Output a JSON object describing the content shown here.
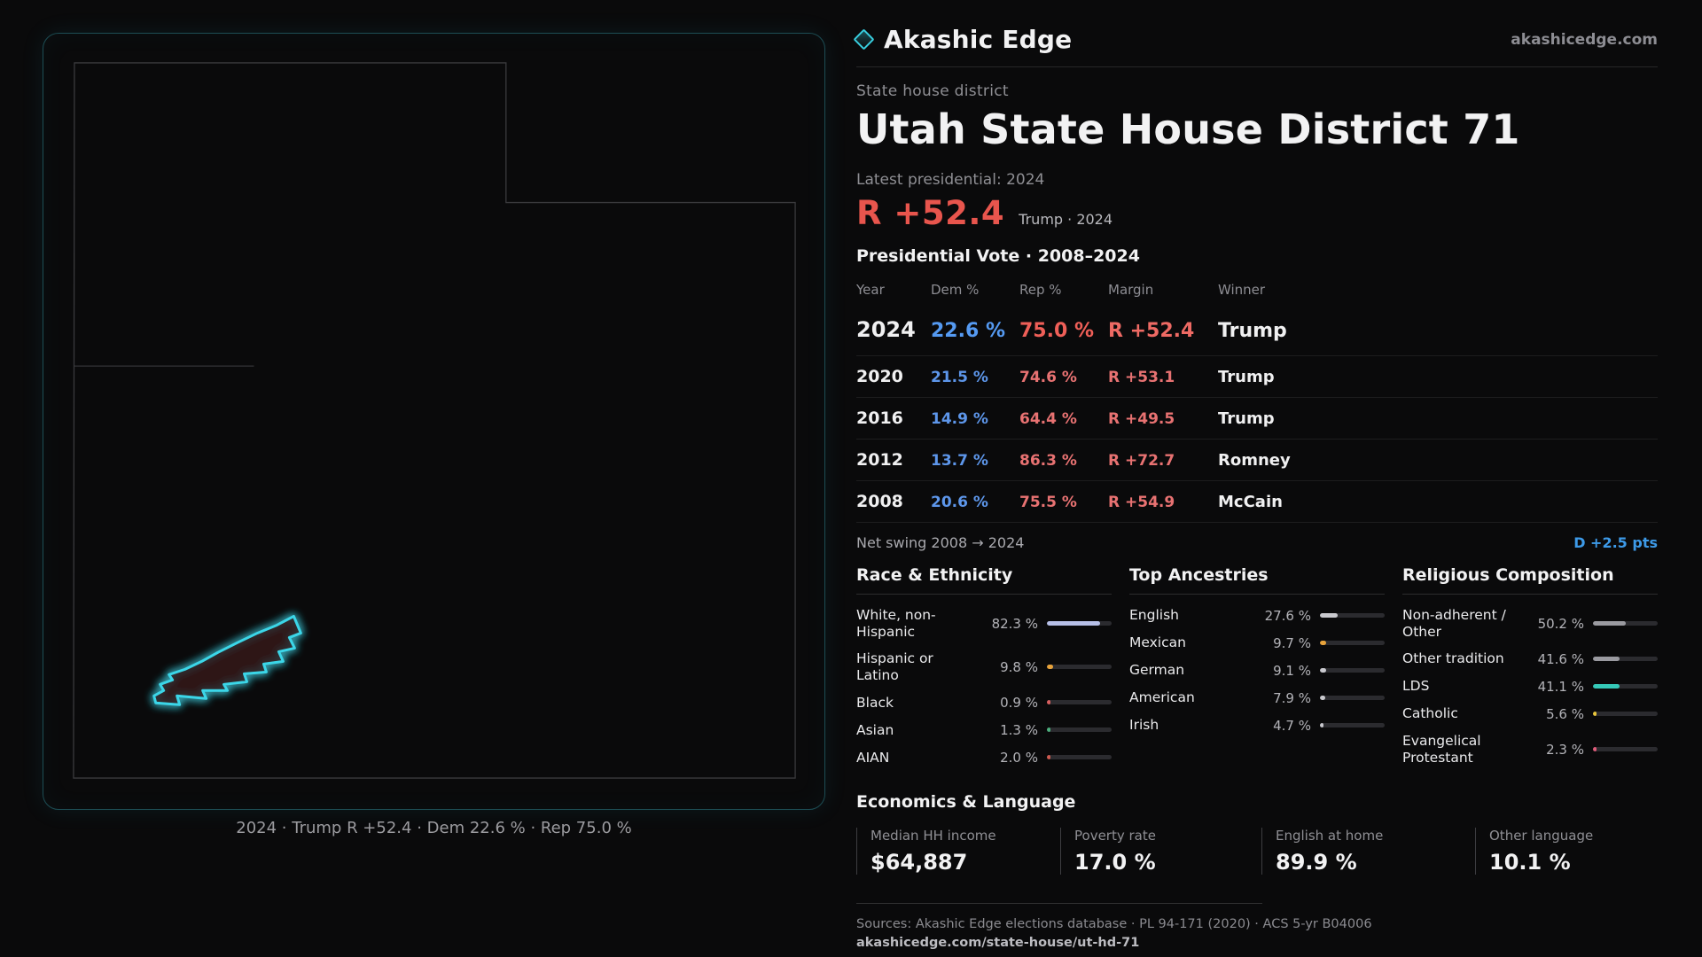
{
  "brand": {
    "name": "Akashic Edge",
    "domain": "akashicedge.com"
  },
  "colors": {
    "accent_cyan": "#38cfe0",
    "rep_red": "#e8554d",
    "dem_blue": "#5d96ea",
    "swing_blue": "#3d9ae8",
    "muted": "#8f8f94"
  },
  "header": {
    "kicker": "State house district",
    "title": "Utah State House District 71"
  },
  "latest": {
    "label": "Latest presidential: 2024",
    "margin": "R +52.4",
    "note": "Trump · 2024"
  },
  "table": {
    "title": "Presidential Vote · 2008–2024",
    "columns": {
      "year": "Year",
      "dem": "Dem %",
      "rep": "Rep %",
      "margin": "Margin",
      "winner": "Winner"
    },
    "rows": [
      {
        "year": "2024",
        "dem": "22.6 %",
        "rep": "75.0 %",
        "margin": "R +52.4",
        "winner": "Trump"
      },
      {
        "year": "2020",
        "dem": "21.5 %",
        "rep": "74.6 %",
        "margin": "R +53.1",
        "winner": "Trump"
      },
      {
        "year": "2016",
        "dem": "14.9 %",
        "rep": "64.4 %",
        "margin": "R +49.5",
        "winner": "Trump"
      },
      {
        "year": "2012",
        "dem": "13.7 %",
        "rep": "86.3 %",
        "margin": "R +72.7",
        "winner": "Romney"
      },
      {
        "year": "2008",
        "dem": "20.6 %",
        "rep": "75.5 %",
        "margin": "R +54.9",
        "winner": "McCain"
      }
    ]
  },
  "swing": {
    "label": "Net swing 2008 → 2024",
    "value": "D +2.5 pts"
  },
  "demographics": {
    "race": {
      "title": "Race & Ethnicity",
      "items": [
        {
          "label": "White, non-Hispanic",
          "value": "82.3 %",
          "pct": 82.3,
          "color": "#b7c0e8"
        },
        {
          "label": "Hispanic or Latino",
          "value": "9.8 %",
          "pct": 9.8,
          "color": "#e8a33b"
        },
        {
          "label": "Black",
          "value": "0.9 %",
          "pct": 0.9,
          "color": "#d95f5f"
        },
        {
          "label": "Asian",
          "value": "1.3 %",
          "pct": 1.3,
          "color": "#4caf7d"
        },
        {
          "label": "AIAN",
          "value": "2.0 %",
          "pct": 2.0,
          "color": "#cf5a50"
        }
      ]
    },
    "ancestries": {
      "title": "Top Ancestries",
      "items": [
        {
          "label": "English",
          "value": "27.6 %",
          "pct": 27.6,
          "color": "#c9c9ce"
        },
        {
          "label": "Mexican",
          "value": "9.7 %",
          "pct": 9.7,
          "color": "#e8a33b"
        },
        {
          "label": "German",
          "value": "9.1 %",
          "pct": 9.1,
          "color": "#c9c9ce"
        },
        {
          "label": "American",
          "value": "7.9 %",
          "pct": 7.9,
          "color": "#c9c9ce"
        },
        {
          "label": "Irish",
          "value": "4.7 %",
          "pct": 4.7,
          "color": "#c9c9ce"
        }
      ]
    },
    "religion": {
      "title": "Religious Composition",
      "items": [
        {
          "label": "Non-adherent / Other",
          "value": "50.2 %",
          "pct": 50.2,
          "color": "#9a9aa0"
        },
        {
          "label": "Other tradition",
          "value": "41.6 %",
          "pct": 41.6,
          "color": "#9a9aa0"
        },
        {
          "label": "LDS",
          "value": "41.1 %",
          "pct": 41.1,
          "color": "#35c9b8"
        },
        {
          "label": "Catholic",
          "value": "5.6 %",
          "pct": 5.6,
          "color": "#e8c53b"
        },
        {
          "label": "Evangelical Protestant",
          "value": "2.3 %",
          "pct": 2.3,
          "color": "#e05c7a"
        }
      ]
    }
  },
  "economics": {
    "title": "Economics & Language",
    "stats": [
      {
        "label": "Median HH income",
        "value": "$64,887"
      },
      {
        "label": "Poverty rate",
        "value": "17.0 %"
      },
      {
        "label": "English at home",
        "value": "89.9 %"
      },
      {
        "label": "Other language",
        "value": "10.1 %"
      }
    ]
  },
  "map": {
    "caption": "2024 · Trump R +52.4 · Dem 22.6 % · Rep 75.0 %"
  },
  "footer": {
    "sources": "Sources: Akashic Edge elections database · PL 94-171 (2020) · ACS 5-yr B04006",
    "url": "akashicedge.com/state-house/ut-hd-71"
  }
}
